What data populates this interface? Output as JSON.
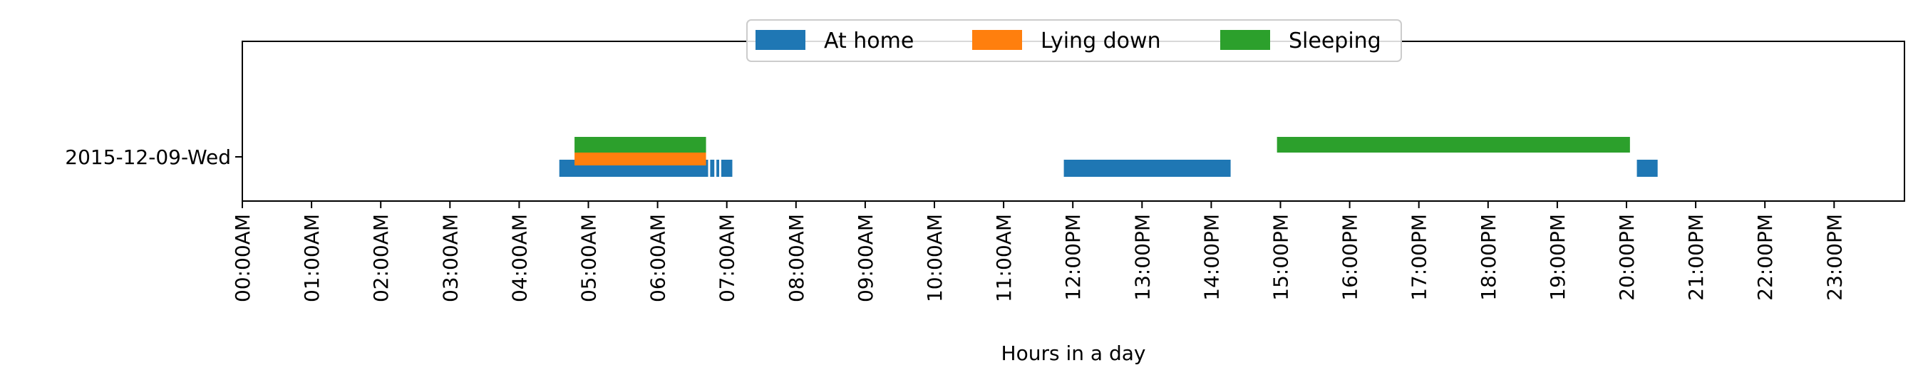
{
  "chart_data": {
    "type": "timeline",
    "xlabel": "Hours in a day",
    "xlim": [
      0,
      24
    ],
    "x_ticks": [
      "00:00AM",
      "01:00AM",
      "02:00AM",
      "03:00AM",
      "04:00AM",
      "05:00AM",
      "06:00AM",
      "07:00AM",
      "08:00AM",
      "09:00AM",
      "10:00AM",
      "11:00AM",
      "12:00PM",
      "13:00PM",
      "14:00PM",
      "15:00PM",
      "16:00PM",
      "17:00PM",
      "18:00PM",
      "19:00PM",
      "20:00PM",
      "21:00PM",
      "22:00PM",
      "23:00PM"
    ],
    "categories": [
      "2015-12-09-Wed"
    ],
    "grid": false,
    "legend_position": "top-center",
    "series": [
      {
        "name": "At home",
        "color": "#1f77b4",
        "lane": "lower",
        "intervals": [
          [
            4.58,
            6.73
          ],
          [
            6.76,
            6.82
          ],
          [
            6.85,
            6.89
          ],
          [
            6.92,
            7.08
          ],
          [
            11.87,
            14.28
          ],
          [
            20.15,
            20.45
          ]
        ]
      },
      {
        "name": "Lying down",
        "color": "#ff7f0e",
        "lane": "middle",
        "intervals": [
          [
            4.8,
            6.7
          ]
        ]
      },
      {
        "name": "Sleeping",
        "color": "#2ca02c",
        "lane": "upper",
        "intervals": [
          [
            4.8,
            6.7
          ],
          [
            14.95,
            20.05
          ]
        ]
      }
    ]
  }
}
